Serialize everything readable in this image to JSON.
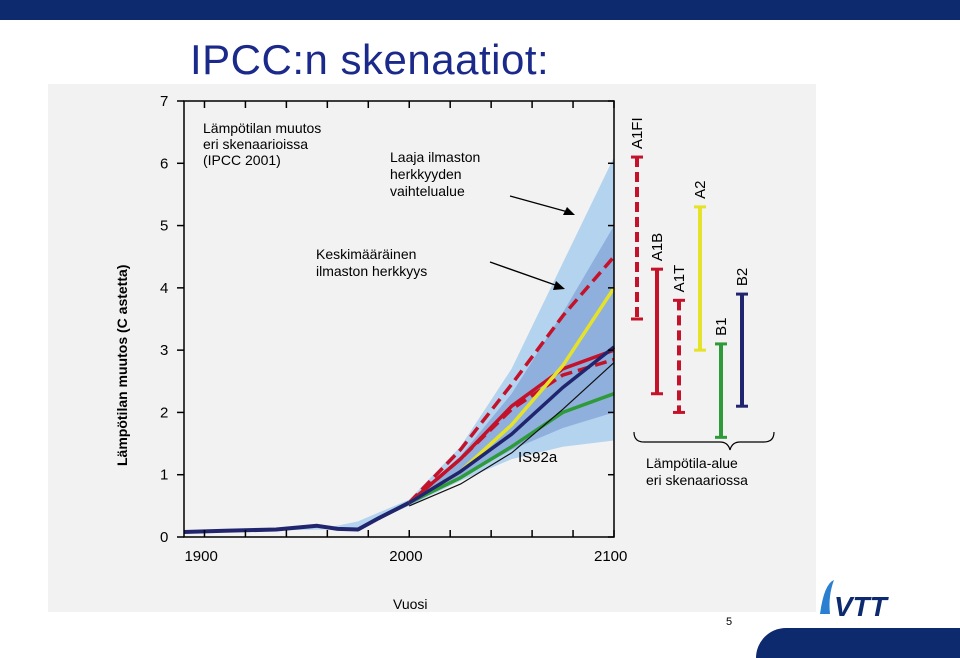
{
  "slide": {
    "title": "IPCC:n skenaatiot:",
    "page_number": "5",
    "logo_text": "VTT"
  },
  "chart_data": {
    "type": "line",
    "xlabel": "Vuosi",
    "ylabel": "Lämpötilan muutos (C astetta)",
    "xlim": [
      1890,
      2100
    ],
    "ylim": [
      0,
      7
    ],
    "xticks": [
      1900,
      2000,
      2100
    ],
    "yticks": [
      0,
      1,
      2,
      3,
      4,
      5,
      6,
      7
    ],
    "grid": false,
    "title_lines": [
      "Lämpötilan muutos",
      "eri skenaarioissa",
      "(IPCC 2001)"
    ],
    "annotations": {
      "wide_range": [
        "Laaja ilmaston",
        "herkkyyden",
        "vaihtelualue"
      ],
      "mean_sensitivity": [
        "Keskimääräinen",
        "ilmaston herkkyys"
      ],
      "is92a": "IS92a",
      "range_caption": [
        "Lämpötila-alue",
        "eri skenaariossa"
      ]
    },
    "bands": [
      {
        "name": "wide",
        "color": "#b4d3ee",
        "upper": [
          [
            1890,
            0.1
          ],
          [
            1960,
            0.15
          ],
          [
            1975,
            0.25
          ],
          [
            2000,
            0.6
          ],
          [
            2025,
            1.45
          ],
          [
            2050,
            2.7
          ],
          [
            2075,
            4.4
          ],
          [
            2100,
            6.1
          ]
        ],
        "lower": [
          [
            2100,
            1.55
          ],
          [
            2075,
            1.45
          ],
          [
            2050,
            1.25
          ],
          [
            2025,
            0.9
          ],
          [
            2000,
            0.5
          ],
          [
            1975,
            0.15
          ],
          [
            1960,
            0.12
          ],
          [
            1890,
            0.08
          ]
        ]
      },
      {
        "name": "mean",
        "color": "#8fb0dd",
        "upper": [
          [
            2000,
            0.55
          ],
          [
            2025,
            1.3
          ],
          [
            2050,
            2.3
          ],
          [
            2075,
            3.6
          ],
          [
            2100,
            5.0
          ]
        ],
        "lower": [
          [
            2100,
            2.0
          ],
          [
            2075,
            1.75
          ],
          [
            2050,
            1.4
          ],
          [
            2025,
            0.95
          ],
          [
            2000,
            0.5
          ]
        ]
      }
    ],
    "history": [
      [
        1890,
        0.08
      ],
      [
        1910,
        0.1
      ],
      [
        1935,
        0.12
      ],
      [
        1955,
        0.18
      ],
      [
        1965,
        0.13
      ],
      [
        1975,
        0.12
      ],
      [
        1985,
        0.3
      ],
      [
        2000,
        0.55
      ]
    ],
    "series": [
      {
        "name": "A1FI",
        "color": "#c3122a",
        "dash": true,
        "values": [
          [
            2000,
            0.55
          ],
          [
            2025,
            1.4
          ],
          [
            2050,
            2.45
          ],
          [
            2075,
            3.55
          ],
          [
            2100,
            4.5
          ]
        ]
      },
      {
        "name": "A1B",
        "color": "#c3122a",
        "dash": false,
        "values": [
          [
            2000,
            0.55
          ],
          [
            2025,
            1.25
          ],
          [
            2050,
            2.1
          ],
          [
            2075,
            2.7
          ],
          [
            2100,
            3.0
          ]
        ]
      },
      {
        "name": "A1T",
        "color": "#c3122a",
        "dash": true,
        "values": [
          [
            2000,
            0.55
          ],
          [
            2025,
            1.25
          ],
          [
            2050,
            2.05
          ],
          [
            2075,
            2.6
          ],
          [
            2100,
            2.85
          ]
        ]
      },
      {
        "name": "A2",
        "color": "#e6e22a",
        "dash": false,
        "values": [
          [
            2000,
            0.55
          ],
          [
            2025,
            1.05
          ],
          [
            2050,
            1.8
          ],
          [
            2075,
            2.75
          ],
          [
            2100,
            4.0
          ]
        ]
      },
      {
        "name": "B1",
        "color": "#2f9a3a",
        "dash": false,
        "values": [
          [
            2000,
            0.55
          ],
          [
            2025,
            0.95
          ],
          [
            2050,
            1.45
          ],
          [
            2075,
            2.0
          ],
          [
            2100,
            2.3
          ]
        ]
      },
      {
        "name": "B2",
        "color": "#20256e",
        "dash": false,
        "values": [
          [
            2000,
            0.55
          ],
          [
            2025,
            1.05
          ],
          [
            2050,
            1.65
          ],
          [
            2075,
            2.4
          ],
          [
            2100,
            3.05
          ]
        ]
      },
      {
        "name": "IS92a",
        "color": "#111111",
        "dash": false,
        "thin": true,
        "values": [
          [
            2000,
            0.5
          ],
          [
            2025,
            0.85
          ],
          [
            2050,
            1.35
          ],
          [
            2075,
            2.05
          ],
          [
            2100,
            2.8
          ]
        ]
      }
    ],
    "ranges": [
      {
        "name": "A1FI",
        "color": "#c3122a",
        "dash": true,
        "low": 3.5,
        "high": 6.1
      },
      {
        "name": "A1B",
        "color": "#c3122a",
        "dash": false,
        "low": 2.3,
        "high": 4.3
      },
      {
        "name": "A1T",
        "color": "#c3122a",
        "dash": true,
        "low": 2.0,
        "high": 3.8
      },
      {
        "name": "A2",
        "color": "#e6e22a",
        "dash": false,
        "low": 3.0,
        "high": 5.3
      },
      {
        "name": "B1",
        "color": "#2f9a3a",
        "dash": false,
        "low": 1.6,
        "high": 3.1
      },
      {
        "name": "B2",
        "color": "#20256e",
        "dash": false,
        "low": 2.1,
        "high": 3.9
      }
    ]
  }
}
